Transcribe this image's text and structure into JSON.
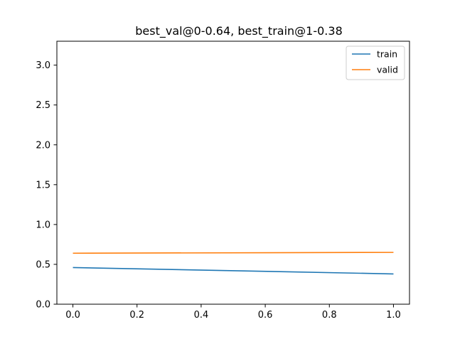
{
  "chart_data": {
    "type": "line",
    "title": "best_val@0-0.64, best_train@1-0.38",
    "xlabel": "",
    "ylabel": "",
    "xlim": [
      -0.05,
      1.05
    ],
    "ylim": [
      0.0,
      3.3
    ],
    "xticks": [
      "0.0",
      "0.2",
      "0.4",
      "0.6",
      "0.8",
      "1.0"
    ],
    "yticks": [
      "0.0",
      "0.5",
      "1.0",
      "1.5",
      "2.0",
      "2.5",
      "3.0"
    ],
    "grid": false,
    "legend_position": "top-right",
    "series": [
      {
        "name": "train",
        "color": "#1f77b4",
        "x": [
          0,
          1
        ],
        "y": [
          0.46,
          0.38
        ]
      },
      {
        "name": "valid",
        "color": "#ff7f0e",
        "x": [
          0,
          1
        ],
        "y": [
          0.64,
          0.65
        ]
      }
    ]
  }
}
